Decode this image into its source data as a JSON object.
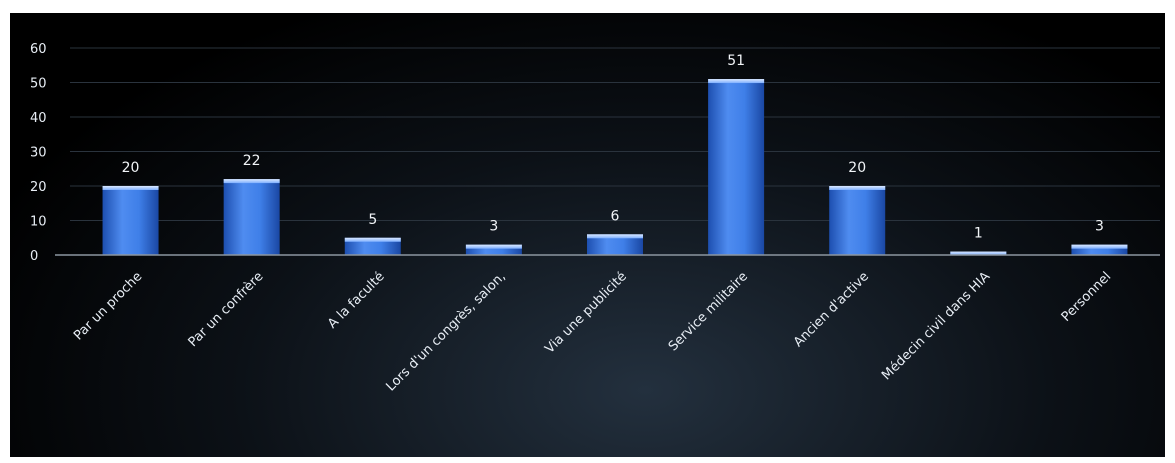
{
  "chart_data": {
    "type": "bar",
    "title": "",
    "xlabel": "",
    "ylabel": "",
    "categories": [
      "Par un proche",
      "Par un confrère",
      "A la faculté",
      "Lors d'un congrès, salon,",
      "Via une publicité",
      "Service militaire",
      "Ancien d'active",
      "Médecin civil dans HIA",
      "Personnel"
    ],
    "values": [
      20,
      22,
      5,
      3,
      6,
      51,
      20,
      1,
      3
    ],
    "ylim": [
      0,
      60
    ],
    "yticks": [
      0,
      10,
      20,
      30,
      40,
      50,
      60
    ],
    "grid": true,
    "legend": "none",
    "colors": {
      "bar_top": "#7fb0ff",
      "bar_mid": "#3f7fe8",
      "bar_bottom": "#1d4fb0",
      "background": "#05080b",
      "text": "#e8eef5"
    }
  }
}
